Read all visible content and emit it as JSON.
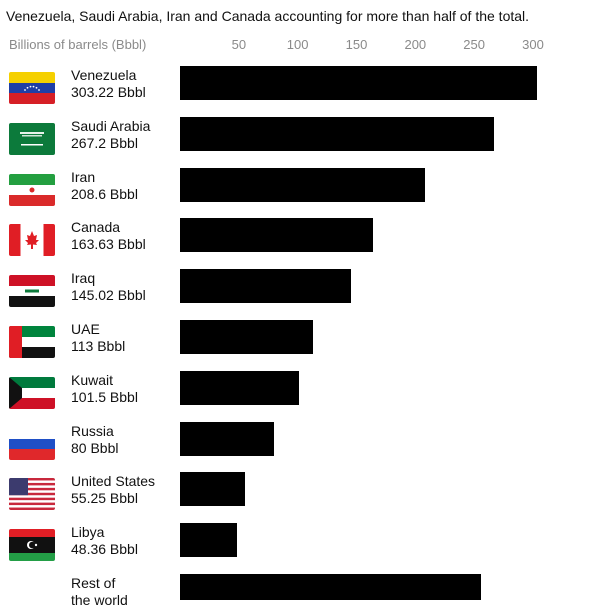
{
  "header": {
    "subtitle_line": "Venezuela, Saudi Arabia, Iran and Canada accounting for more than half of the total.",
    "axis_unit_label": "Billions of barrels (Bbbl)"
  },
  "chart_data": {
    "type": "bar",
    "orientation": "horizontal",
    "xlim": [
      0,
      300
    ],
    "ticks": [
      "50",
      "100",
      "150",
      "200",
      "250",
      "300"
    ],
    "categories": [
      "Venezuela",
      "Saudi Arabia",
      "Iran",
      "Canada",
      "Iraq",
      "UAE",
      "Kuwait",
      "Russia",
      "United States",
      "Libya",
      "Rest of the world"
    ],
    "values": [
      303.22,
      267.2,
      208.6,
      163.63,
      145.02,
      113,
      101.5,
      80,
      55.25,
      48.36,
      256
    ],
    "value_labels": [
      "303.22 Bbbl",
      "267.2 Bbbl",
      "208.6 Bbbl",
      "163.63 Bbbl",
      " 145.02 Bbbl",
      "113 Bbbl",
      "101.5 Bbbl",
      "80 Bbbl",
      "55.25 Bbbl",
      "48.36 Bbbl",
      ""
    ],
    "rest_label_lines": [
      "Rest of",
      "the world"
    ],
    "flags": [
      "venezuela-flag-icon",
      "saudi-arabia-flag-icon",
      "iran-flag-icon",
      "canada-flag-icon",
      "iraq-flag-icon",
      "uae-flag-icon",
      "kuwait-flag-icon",
      "russia-flag-icon",
      "united-states-flag-icon",
      "libya-flag-icon"
    ],
    "bar_color": "#000000",
    "grid": false
  }
}
